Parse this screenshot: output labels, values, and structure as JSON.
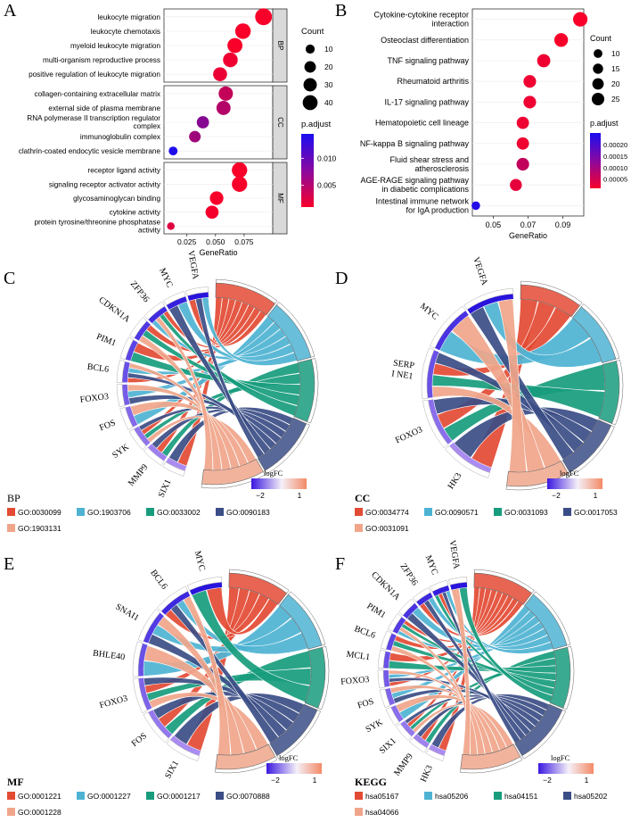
{
  "panels": {
    "a": "A",
    "b": "B",
    "c": "C",
    "d": "D",
    "e": "E",
    "f": "F"
  },
  "dotA": {
    "xlabel": "GeneRatio",
    "xticks": [
      "0.025",
      "0.050",
      "0.075"
    ],
    "xtick_values": [
      0.025,
      0.05,
      0.075
    ],
    "xlim": [
      0.005,
      0.1
    ],
    "facets": [
      {
        "name": "BP",
        "terms": [
          {
            "label": "leukocyte migration",
            "x": 0.092,
            "count": 44,
            "padj": 0.001
          },
          {
            "label": "leukocyte chemotaxis",
            "x": 0.074,
            "count": 36,
            "padj": 0.001
          },
          {
            "label": "myeloid leukocyte migration",
            "x": 0.067,
            "count": 33,
            "padj": 0.001
          },
          {
            "label": "multi-organism reproductive process",
            "x": 0.063,
            "count": 31,
            "padj": 0.0015
          },
          {
            "label": "positive regulation of leukocyte migration",
            "x": 0.054,
            "count": 27,
            "padj": 0.0018
          }
        ]
      },
      {
        "name": "CC",
        "terms": [
          {
            "label": "collagen-containing extracellular matrix",
            "x": 0.059,
            "count": 29,
            "padj": 0.0042
          },
          {
            "label": "external side of plasma membrane",
            "x": 0.057,
            "count": 28,
            "padj": 0.0052
          },
          {
            "label": "RNA polymerase II transcription regulator complex",
            "x": 0.039,
            "count": 19,
            "padj": 0.008
          },
          {
            "label": "immunoglobulin complex",
            "x": 0.032,
            "count": 16,
            "padj": 0.0065
          },
          {
            "label": "clathrin-coated endocytic vesicle membrane",
            "x": 0.013,
            "count": 7,
            "padj": 0.0142
          }
        ]
      },
      {
        "name": "MF",
        "terms": [
          {
            "label": "receptor ligand activity",
            "x": 0.071,
            "count": 35,
            "padj": 0.001
          },
          {
            "label": "signaling receptor activator activity",
            "x": 0.071,
            "count": 35,
            "padj": 0.001
          },
          {
            "label": "glycosaminoglycan binding",
            "x": 0.051,
            "count": 25,
            "padj": 0.001
          },
          {
            "label": "cytokine activity",
            "x": 0.047,
            "count": 23,
            "padj": 0.0012
          },
          {
            "label": "protein tyrosine/threonine phosphatase activity",
            "x": 0.011,
            "count": 4,
            "padj": 0.0025
          }
        ]
      }
    ],
    "legend": {
      "count_title": "Count",
      "count_values": [
        10,
        20,
        30,
        40
      ],
      "count_labels": [
        "10",
        "20",
        "30",
        "40"
      ],
      "padj_title": "p.adjust",
      "padj_ticks": [
        "0.010",
        "0.005"
      ],
      "padj_tick_values": [
        0.01,
        0.005
      ],
      "padj_range": [
        0.001,
        0.0145
      ]
    },
    "colors": {
      "high": "#f8002a",
      "low": "#1a0df0"
    }
  },
  "dotB": {
    "xlabel": "GeneRatio",
    "xticks": [
      "0.05",
      "0.07",
      "0.09"
    ],
    "xtick_values": [
      0.05,
      0.07,
      0.09
    ],
    "xlim": [
      0.038,
      0.102
    ],
    "terms": [
      {
        "label": "Cytokine-cytokine receptor interaction",
        "x": 0.1,
        "count": 24,
        "padj": 1e-05
      },
      {
        "label": "Osteoclast differentiation",
        "x": 0.089,
        "count": 21,
        "padj": 1e-05
      },
      {
        "label": "TNF signaling pathway",
        "x": 0.079,
        "count": 19,
        "padj": 2e-05
      },
      {
        "label": "Rheumatoid arthritis",
        "x": 0.071,
        "count": 17,
        "padj": 2e-05
      },
      {
        "label": "IL-17 signaling pathway",
        "x": 0.071,
        "count": 17,
        "padj": 2e-05
      },
      {
        "label": "Hematopoietic cell lineage",
        "x": 0.067,
        "count": 16,
        "padj": 2e-05
      },
      {
        "label": "NF-kappa B signaling pathway",
        "x": 0.067,
        "count": 16,
        "padj": 2e-05
      },
      {
        "label": "Fluid shear stress and atherosclerosis",
        "x": 0.067,
        "count": 17,
        "padj": 7e-05
      },
      {
        "label": "AGE-RAGE signaling pathway in diabetic complications",
        "x": 0.063,
        "count": 15,
        "padj": 3e-05
      },
      {
        "label": "Intestinal immune network for IgA production",
        "x": 0.04,
        "count": 6,
        "padj": 0.00024
      }
    ],
    "legend": {
      "count_title": "Count",
      "count_values": [
        10,
        15,
        20,
        25
      ],
      "count_labels": [
        "10",
        "15",
        "20",
        "25"
      ],
      "padj_title": "p.adjust",
      "padj_ticks": [
        "0.00020",
        "0.00015",
        "0.00010",
        "0.00005"
      ],
      "padj_tick_values": [
        0.0002,
        0.00015,
        0.0001,
        5e-05
      ],
      "padj_range": [
        1e-05,
        0.00025
      ]
    }
  },
  "chords": [
    {
      "id": "bp",
      "tag": "BP",
      "genes": [
        "SIX1",
        "MMP9",
        "SYK",
        "FOS",
        "FOXO3",
        "BCL6",
        "PIM1",
        "CDKN1A",
        "ZFP36",
        "MYC",
        "VEGFA"
      ],
      "terms": [
        "GO:0030099",
        "GO:1903706",
        "GO:0033002",
        "GO:0090183",
        "GO:1903131"
      ],
      "term_colors": [
        "#e34a33",
        "#4eb3d3",
        "#179c7d",
        "#3b4d86",
        "#f0a58a"
      ],
      "logfc_title": "logFC",
      "logfc_ticks": [
        "−2",
        "1"
      ]
    },
    {
      "id": "cc",
      "tag": "CC",
      "genes": [
        "HK3",
        "FOXO3",
        "SERP\nI NE1",
        "MYC",
        "VEGFA"
      ],
      "terms": [
        "GO:0034774",
        "GO:0090571",
        "GO:0031093",
        "GO:0017053",
        "GO:0031091"
      ],
      "term_colors": [
        "#e34a33",
        "#4eb3d3",
        "#179c7d",
        "#3b4d86",
        "#f0a58a"
      ],
      "logfc_title": "logFC",
      "logfc_ticks": [
        "−2",
        "1"
      ]
    },
    {
      "id": "mf",
      "tag": "MF",
      "genes": [
        "SIX1",
        "FOS",
        "FOXO3",
        "BHLE40",
        "SNAI1",
        "BCL6",
        "MYC"
      ],
      "terms": [
        "GO:0001221",
        "GO:0001227",
        "GO:0001217",
        "GO:0070888",
        "GO:0001228"
      ],
      "term_colors": [
        "#e34a33",
        "#4eb3d3",
        "#179c7d",
        "#3b4d86",
        "#f0a58a"
      ],
      "logfc_title": "logFC",
      "logfc_ticks": [
        "−2",
        "1"
      ]
    },
    {
      "id": "kegg",
      "tag": "KEGG",
      "genes": [
        "HK3",
        "MMP9",
        "SIX1",
        "SYK",
        "FOS",
        "FOXO3",
        "MCL1",
        "BCL6",
        "PIM1",
        "CDKN1A",
        "ZFP36",
        "MYC",
        "VEGFA"
      ],
      "terms": [
        "hsa05167",
        "hsa05206",
        "hsa04151",
        "hsa05202",
        "hsa04066"
      ],
      "term_colors": [
        "#e34a33",
        "#4eb3d3",
        "#179c7d",
        "#3b4d86",
        "#f0a58a"
      ],
      "logfc_title": "logFC",
      "logfc_ticks": [
        "−2",
        "1"
      ]
    }
  ]
}
